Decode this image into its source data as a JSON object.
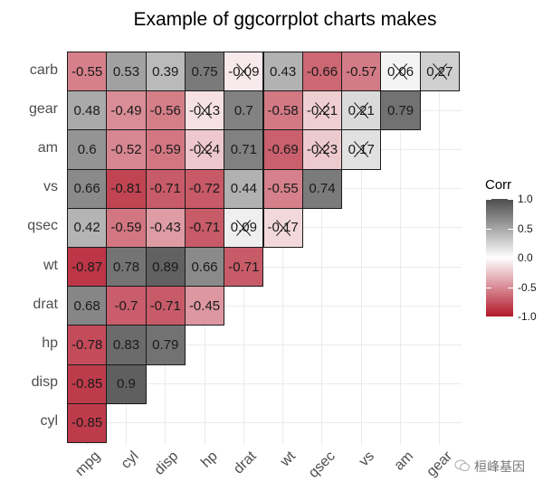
{
  "chart_data": {
    "type": "heatmap",
    "title": "Example of ggcorrplot charts makes",
    "xlabel": "",
    "ylabel": "",
    "x_categories": [
      "mpg",
      "cyl",
      "disp",
      "hp",
      "drat",
      "wt",
      "qsec",
      "vs",
      "am",
      "gear"
    ],
    "y_categories": [
      "cyl",
      "disp",
      "hp",
      "drat",
      "wt",
      "qsec",
      "vs",
      "am",
      "gear",
      "carb"
    ],
    "rows": [
      {
        "var": "cyl",
        "values": [
          -0.85
        ]
      },
      {
        "var": "disp",
        "values": [
          -0.85,
          0.9
        ]
      },
      {
        "var": "hp",
        "values": [
          -0.78,
          0.83,
          0.79
        ]
      },
      {
        "var": "drat",
        "values": [
          0.68,
          -0.7,
          -0.71,
          -0.45
        ]
      },
      {
        "var": "wt",
        "values": [
          -0.87,
          0.78,
          0.89,
          0.66,
          -0.71
        ]
      },
      {
        "var": "qsec",
        "values": [
          0.42,
          -0.59,
          -0.43,
          -0.71,
          0.09,
          -0.17
        ]
      },
      {
        "var": "vs",
        "values": [
          0.66,
          -0.81,
          -0.71,
          -0.72,
          0.44,
          -0.55,
          0.74
        ]
      },
      {
        "var": "am",
        "values": [
          0.6,
          -0.52,
          -0.59,
          -0.24,
          0.71,
          -0.69,
          -0.23,
          0.17
        ]
      },
      {
        "var": "gear",
        "values": [
          0.48,
          -0.49,
          -0.56,
          -0.13,
          0.7,
          -0.58,
          -0.21,
          0.21,
          0.79
        ]
      },
      {
        "var": "carb",
        "values": [
          -0.55,
          0.53,
          0.39,
          0.75,
          -0.09,
          0.43,
          -0.66,
          -0.57,
          0.06,
          0.27
        ]
      }
    ],
    "insignificant": [
      [
        "qsec",
        "drat"
      ],
      [
        "qsec",
        "wt"
      ],
      [
        "am",
        "hp"
      ],
      [
        "am",
        "qsec"
      ],
      [
        "am",
        "vs"
      ],
      [
        "gear",
        "hp"
      ],
      [
        "gear",
        "qsec"
      ],
      [
        "gear",
        "vs"
      ],
      [
        "carb",
        "drat"
      ],
      [
        "carb",
        "am"
      ],
      [
        "carb",
        "gear"
      ]
    ],
    "legend": {
      "title": "Corr",
      "ticks": [
        "1.0",
        "0.5",
        "0.0",
        "-0.5",
        "-1.0"
      ],
      "range": [
        -1,
        1
      ],
      "colors": {
        "low": "#B2182B",
        "mid": "#FFFFFF",
        "high": "#4D4D4D"
      },
      "position": "right"
    },
    "grid": true
  },
  "watermark": {
    "text": "桓峰基因"
  }
}
